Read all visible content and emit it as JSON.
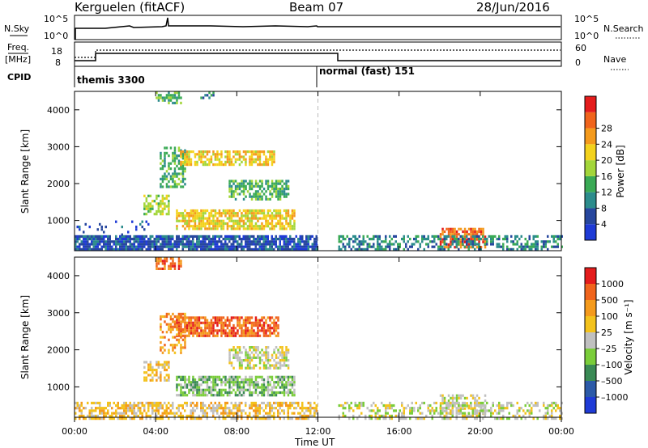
{
  "header": {
    "station": "Kerguelen (fitACF)",
    "beam": "Beam 07",
    "date": "28/Jun/2016"
  },
  "nsky_panel": {
    "left_label": "N.Sky",
    "left_ticks": [
      "10^5",
      "10^0"
    ],
    "right_label": "N.Search",
    "right_ticks": [
      "10^5",
      "10^0"
    ]
  },
  "freq_panel": {
    "left_label_line1": "Freq.",
    "left_label_line2": "[MHz]",
    "left_ticks": [
      "18",
      "8"
    ],
    "right_label": "Nave",
    "right_ticks": [
      "60",
      "0"
    ]
  },
  "cpid_panel": {
    "label": "CPID",
    "programs": [
      {
        "name": "themis 3300",
        "start_hour": 0
      },
      {
        "name": "normal (fast) 151",
        "start_hour": 12
      }
    ]
  },
  "x_axis": {
    "title": "Time UT",
    "tick_labels": [
      "00:00",
      "04:00",
      "08:00",
      "12:00",
      "16:00",
      "20:00",
      "00:00"
    ],
    "tick_hours": [
      0,
      4,
      8,
      12,
      16,
      20,
      24
    ]
  },
  "chart_data": [
    {
      "type": "heatmap",
      "name": "power",
      "ylabel": "Slant Range [km]",
      "y_tick_labels": [
        "1000",
        "2000",
        "3000",
        "4000"
      ],
      "y_ticks": [
        1000,
        2000,
        3000,
        4000
      ],
      "ylim": [
        180,
        4500
      ],
      "xlim": [
        0,
        24
      ],
      "colorbar_label": "Power [dB]",
      "colorbar_ticks": [
        "4",
        "8",
        "12",
        "16",
        "20",
        "24",
        "28"
      ],
      "colorbar_colors": [
        "#1f3bd6",
        "#27479e",
        "#2c8c8c",
        "#3aaa55",
        "#a3d63a",
        "#f3d21c",
        "#f49a1c",
        "#f0641c",
        "#e41c1c"
      ],
      "regions": [
        {
          "t0": 0.0,
          "t1": 11.9,
          "r0": 180,
          "r1": 600,
          "level": 1,
          "density": 0.85
        },
        {
          "t0": 0.0,
          "t1": 3.6,
          "r0": 600,
          "r1": 1000,
          "level": 1,
          "density": 0.12
        },
        {
          "t0": 4.0,
          "t1": 5.2,
          "r0": 4200,
          "r1": 4500,
          "level": 3,
          "density": 0.6
        },
        {
          "t0": 6.2,
          "t1": 6.8,
          "r0": 4300,
          "r1": 4500,
          "level": 2,
          "density": 0.4
        },
        {
          "t0": 4.2,
          "t1": 5.4,
          "r0": 1900,
          "r1": 3000,
          "level": 3,
          "density": 0.55
        },
        {
          "t0": 5.2,
          "t1": 9.8,
          "r0": 2500,
          "r1": 2900,
          "level": 5,
          "density": 0.7
        },
        {
          "t0": 3.4,
          "t1": 4.6,
          "r0": 1200,
          "r1": 1700,
          "level": 4,
          "density": 0.65
        },
        {
          "t0": 5.0,
          "t1": 10.8,
          "r0": 800,
          "r1": 1300,
          "level": 5,
          "density": 0.75
        },
        {
          "t0": 7.6,
          "t1": 10.5,
          "r0": 1600,
          "r1": 2100,
          "level": 3,
          "density": 0.6
        },
        {
          "t0": 18.0,
          "t1": 20.2,
          "r0": 300,
          "r1": 800,
          "level": 7,
          "density": 0.7
        },
        {
          "t0": 13.0,
          "t1": 24.0,
          "r0": 180,
          "r1": 600,
          "level": 2,
          "density": 0.5
        }
      ]
    },
    {
      "type": "heatmap",
      "name": "velocity",
      "ylabel": "Slant Range [km]",
      "y_tick_labels": [
        "1000",
        "2000",
        "3000",
        "4000"
      ],
      "y_ticks": [
        1000,
        2000,
        3000,
        4000
      ],
      "ylim": [
        180,
        4500
      ],
      "xlim": [
        0,
        24
      ],
      "colorbar_label": "Velocity [m s⁻¹]",
      "colorbar_ticks": [
        "1000",
        "500",
        "100",
        "25",
        "–25",
        "–100",
        "–500",
        "–1000"
      ],
      "colorbar_colors": [
        "#1f3bd6",
        "#2c5aa8",
        "#3a8a55",
        "#7acd3a",
        "#c0c0c0",
        "#f3c21c",
        "#f49a1c",
        "#f0641c",
        "#e41c1c"
      ],
      "regions": [
        {
          "t0": 0.0,
          "t1": 11.9,
          "r0": 180,
          "r1": 600,
          "level": 5,
          "density": 0.6
        },
        {
          "t0": 4.0,
          "t1": 5.2,
          "r0": 4200,
          "r1": 4500,
          "level": 7,
          "density": 0.6
        },
        {
          "t0": 5.0,
          "t1": 10.0,
          "r0": 2400,
          "r1": 2900,
          "level": 7,
          "density": 0.75
        },
        {
          "t0": 4.2,
          "t1": 5.4,
          "r0": 1900,
          "r1": 3000,
          "level": 6,
          "density": 0.5
        },
        {
          "t0": 7.6,
          "t1": 10.5,
          "r0": 1500,
          "r1": 2100,
          "level": 4,
          "density": 0.6
        },
        {
          "t0": 3.4,
          "t1": 4.6,
          "r0": 1200,
          "r1": 1700,
          "level": 5,
          "density": 0.6
        },
        {
          "t0": 5.0,
          "t1": 10.8,
          "r0": 800,
          "r1": 1300,
          "level": 3,
          "density": 0.7
        },
        {
          "t0": 18.0,
          "t1": 20.2,
          "r0": 300,
          "r1": 800,
          "level": 4,
          "density": 0.5
        },
        {
          "t0": 13.0,
          "t1": 24.0,
          "r0": 180,
          "r1": 600,
          "level": 4,
          "density": 0.45
        }
      ]
    }
  ]
}
